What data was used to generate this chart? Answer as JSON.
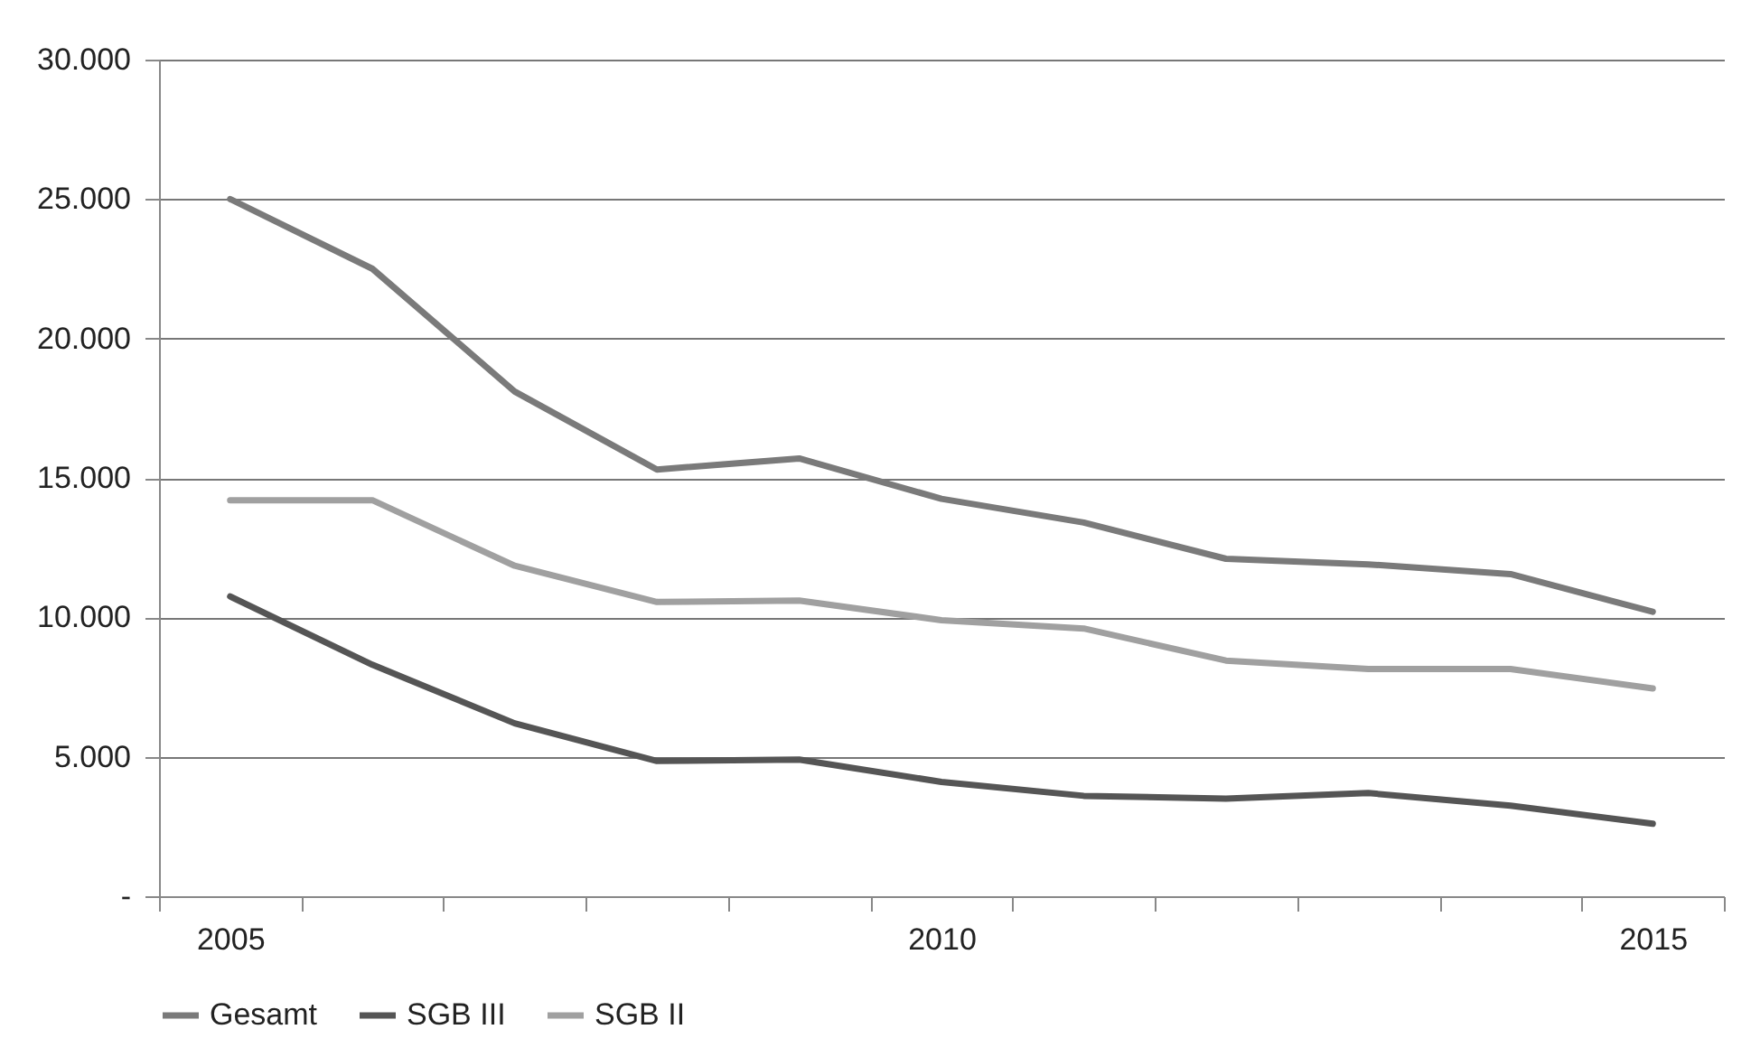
{
  "chart_data": {
    "type": "line",
    "categories": [
      "2005",
      null,
      null,
      null,
      null,
      "2010",
      null,
      null,
      null,
      null,
      "2015"
    ],
    "series": [
      {
        "name": "Gesamt",
        "color": "#7a7a7a",
        "values": [
          25000,
          22500,
          18100,
          15300,
          15700,
          14250,
          13400,
          12100,
          11900,
          11550,
          10200
        ]
      },
      {
        "name": "SGB III",
        "color": "#555555",
        "values": [
          10750,
          8300,
          6200,
          4850,
          4900,
          4100,
          3600,
          3500,
          3700,
          3250,
          2600
        ]
      },
      {
        "name": "SGB II",
        "color": "#a0a0a0",
        "values": [
          14200,
          14200,
          11850,
          10550,
          10600,
          9900,
          9600,
          8450,
          8150,
          8150,
          7450
        ]
      }
    ],
    "ylim": [
      0,
      30000
    ],
    "yticks": [
      {
        "value": 0,
        "label": "-"
      },
      {
        "value": 5000,
        "label": "5.000"
      },
      {
        "value": 10000,
        "label": "10.000"
      },
      {
        "value": 15000,
        "label": "15.000"
      },
      {
        "value": 20000,
        "label": "20.000"
      },
      {
        "value": 25000,
        "label": "25.000"
      },
      {
        "value": 30000,
        "label": "30.000"
      }
    ],
    "grid": "y",
    "legend": "bottom",
    "marker": "none",
    "line_style": "solid"
  }
}
